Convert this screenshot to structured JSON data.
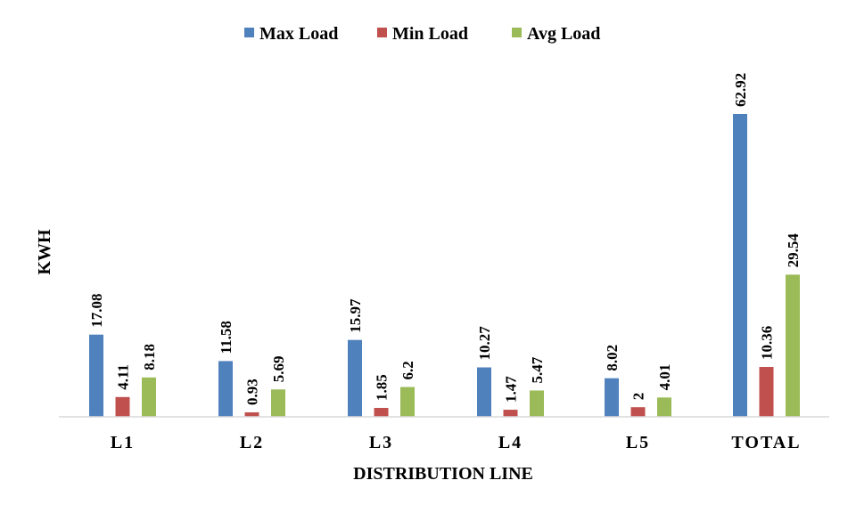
{
  "chart_data": {
    "type": "bar",
    "title": "",
    "xlabel": "DISTRIBUTION  LINE",
    "ylabel": "KWH",
    "categories": [
      "L1",
      "L2",
      "L3",
      "L4",
      "L5",
      "TOTAL"
    ],
    "series": [
      {
        "name": "Max Load",
        "color": "#4F81BD",
        "values": [
          17.08,
          11.58,
          15.97,
          10.27,
          8.02,
          62.92
        ],
        "labels": [
          "17.08",
          "11.58",
          "15.97",
          "10.27",
          "8.02",
          "62.92"
        ]
      },
      {
        "name": "Min  Load",
        "color": "#C0504D",
        "values": [
          4.11,
          0.93,
          1.85,
          1.47,
          2,
          10.36
        ],
        "labels": [
          "4.11",
          "0.93",
          "1.85",
          "1.47",
          "2",
          "10.36"
        ]
      },
      {
        "name": "Avg  Load",
        "color": "#9BBB59",
        "values": [
          8.18,
          5.69,
          6.2,
          5.47,
          4.01,
          29.54
        ],
        "labels": [
          "8.18",
          "5.69",
          "6.2",
          "5.47",
          "4.01",
          "29.54"
        ]
      }
    ],
    "ylim": [
      0,
      70
    ],
    "grid": false,
    "legend_position": "top-center",
    "axis_color": "#D9D9D9"
  }
}
